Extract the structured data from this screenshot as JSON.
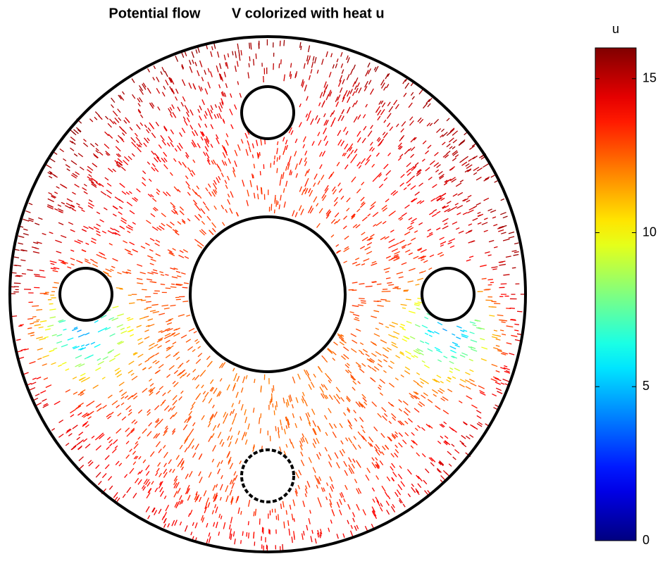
{
  "chart_data": {
    "type": "quiver",
    "title": "Potential flow        V colorized with heat u",
    "colorbar": {
      "label": "u",
      "lim": [
        0,
        16
      ],
      "ticks": [
        0,
        5,
        10,
        15
      ],
      "colormap": "jet"
    }
  }
}
